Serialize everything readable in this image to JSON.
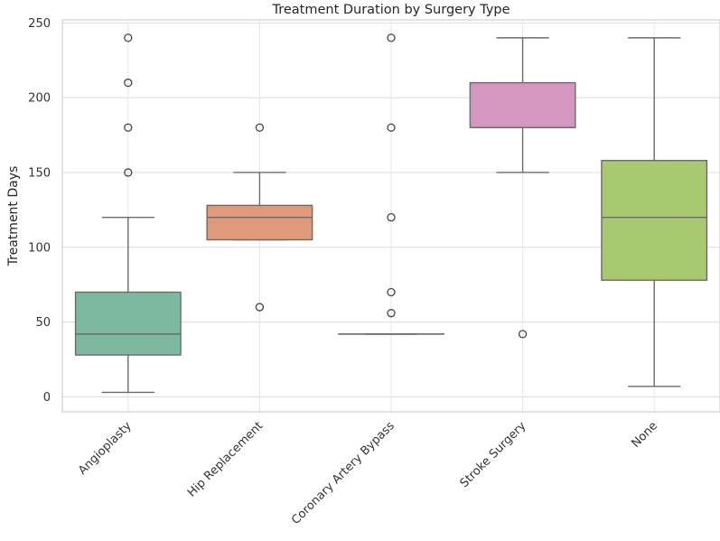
{
  "chart_data": {
    "type": "box",
    "title": "Treatment Duration by Surgery Type",
    "xlabel": "",
    "ylabel": "Treatment Days",
    "ylim": [
      -10,
      252
    ],
    "yticks": [
      0,
      50,
      100,
      150,
      200,
      250
    ],
    "grid": true,
    "categories": [
      "Angioplasty",
      "Hip Replacement",
      "Coronary Artery Bypass",
      "Stroke Surgery",
      "None"
    ],
    "colors": [
      "#7fb8a1",
      "#de9a7b",
      "#9fa8cb",
      "#d497bf",
      "#a8c970"
    ],
    "boxes": [
      {
        "category": "Angioplasty",
        "whisker_low": 3,
        "q1": 28,
        "median": 42,
        "q3": 70,
        "whisker_high": 120,
        "outliers": [
          150,
          180,
          210,
          240
        ]
      },
      {
        "category": "Hip Replacement",
        "whisker_low": 105,
        "q1": 105,
        "median": 120,
        "q3": 128,
        "whisker_high": 150,
        "outliers": [
          60,
          180
        ]
      },
      {
        "category": "Coronary Artery Bypass",
        "whisker_low": 42,
        "q1": 42,
        "median": 42,
        "q3": 42,
        "whisker_high": 42,
        "outliers": [
          56,
          70,
          120,
          180,
          240
        ]
      },
      {
        "category": "Stroke Surgery",
        "whisker_low": 150,
        "q1": 180,
        "median": 180,
        "q3": 210,
        "whisker_high": 240,
        "outliers": [
          42
        ]
      },
      {
        "category": "None",
        "whisker_low": 7,
        "q1": 78,
        "median": 120,
        "q3": 158,
        "whisker_high": 240,
        "outliers": []
      }
    ]
  }
}
